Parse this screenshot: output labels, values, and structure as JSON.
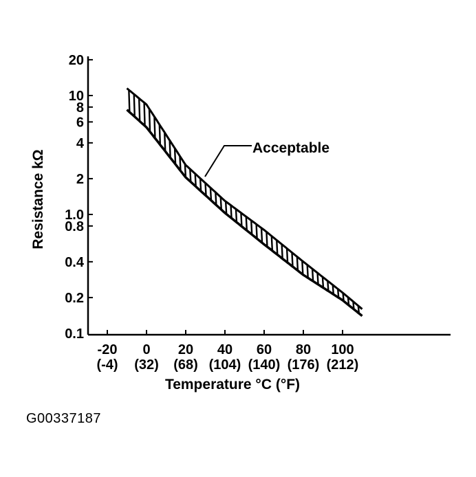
{
  "chart_data": {
    "type": "area",
    "title": "",
    "xlabel": "Temperature °C (°F)",
    "ylabel": "Resistance kΩ",
    "y_scale": "log",
    "ylim": [
      0.1,
      20
    ],
    "xlim": [
      -30,
      150
    ],
    "grid": false,
    "y_ticks": [
      "20",
      "10",
      "8",
      "6",
      "4",
      "2",
      "1.0",
      "0.8",
      "0.4",
      "0.2",
      "0.1"
    ],
    "y_tick_values": [
      20,
      10,
      8,
      6,
      4,
      2,
      1.0,
      0.8,
      0.4,
      0.2,
      0.1
    ],
    "x_ticks": [
      {
        "c": "-20",
        "f": "(-4)",
        "value": -20
      },
      {
        "c": "0",
        "f": "(32)",
        "value": 0
      },
      {
        "c": "20",
        "f": "(68)",
        "value": 20
      },
      {
        "c": "40",
        "f": "(104)",
        "value": 40
      },
      {
        "c": "60",
        "f": "(140)",
        "value": 60
      },
      {
        "c": "80",
        "f": "(176)",
        "value": 80
      },
      {
        "c": "100",
        "f": "(212)",
        "value": 100
      }
    ],
    "x": [
      -10,
      0,
      20,
      40,
      60,
      80,
      100,
      110
    ],
    "series": [
      {
        "role": "upper",
        "values": [
          11.5,
          8.4,
          2.6,
          1.3,
          0.74,
          0.4,
          0.22,
          0.16
        ]
      },
      {
        "role": "lower",
        "values": [
          7.6,
          5.4,
          2.05,
          1.03,
          0.56,
          0.31,
          0.19,
          0.14
        ]
      }
    ],
    "annotations": [
      {
        "text": "Acceptable",
        "x": 30,
        "y": 1.7
      }
    ],
    "colors": {
      "ink": "#000000",
      "background": "#ffffff"
    }
  },
  "figure_id": "G00337187"
}
